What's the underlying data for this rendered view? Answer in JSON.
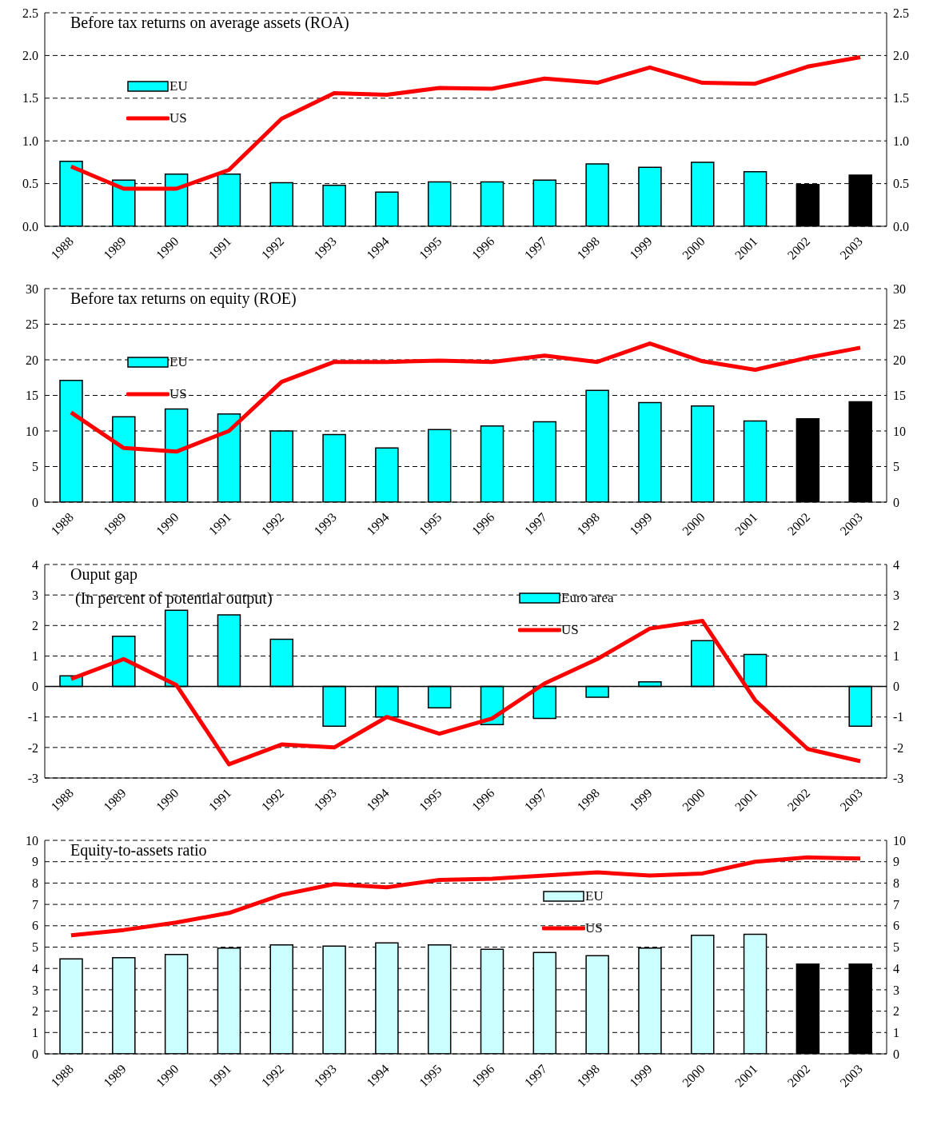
{
  "chart_data": [
    {
      "type": "bar",
      "title": "Before tax returns on average assets (ROA)",
      "categories": [
        "1988",
        "1989",
        "1990",
        "1991",
        "1992",
        "1993",
        "1994",
        "1995",
        "1996",
        "1997",
        "1998",
        "1999",
        "2000",
        "2001",
        "2002",
        "2003"
      ],
      "series": [
        {
          "name": "EU",
          "color": "#00ffff",
          "colors": [
            "#00ffff",
            "#00ffff",
            "#00ffff",
            "#00ffff",
            "#00ffff",
            "#00ffff",
            "#00ffff",
            "#00ffff",
            "#00ffff",
            "#00ffff",
            "#00ffff",
            "#00ffff",
            "#00ffff",
            "#00ffff",
            "#000000",
            "#000000"
          ],
          "values": [
            0.76,
            0.54,
            0.61,
            0.61,
            0.51,
            0.48,
            0.4,
            0.52,
            0.52,
            0.54,
            0.73,
            0.69,
            0.75,
            0.64,
            0.49,
            0.6
          ]
        },
        {
          "name": "US",
          "type": "line",
          "color": "#ff0000",
          "values": [
            0.7,
            0.44,
            0.44,
            0.66,
            1.26,
            1.56,
            1.54,
            1.62,
            1.61,
            1.73,
            1.68,
            1.86,
            1.68,
            1.67,
            1.87,
            1.98
          ]
        }
      ],
      "ylim": [
        0,
        2.5
      ],
      "yticks": [
        {
          "value": 0,
          "label": "0.0"
        },
        {
          "value": 0.5,
          "label": "0.5"
        },
        {
          "value": 1,
          "label": "1.0"
        },
        {
          "value": 1.5,
          "label": "1.5"
        },
        {
          "value": 2,
          "label": "2.0"
        },
        {
          "value": 2.5,
          "label": "2.5"
        }
      ],
      "y2lim": [
        0,
        2.5
      ],
      "y2ticks": [
        {
          "value": 0,
          "label": "0.0"
        },
        {
          "value": 0.5,
          "label": "0.5"
        },
        {
          "value": 1,
          "label": "1.0"
        },
        {
          "value": 1.5,
          "label": "1.5"
        },
        {
          "value": 2,
          "label": "2.0"
        },
        {
          "value": 2.5,
          "label": "2.5"
        }
      ],
      "grid": "y",
      "legend": "top left"
    },
    {
      "type": "bar",
      "title": "Before tax returns on equity (ROE)",
      "categories": [
        "1988",
        "1989",
        "1990",
        "1991",
        "1992",
        "1993",
        "1994",
        "1995",
        "1996",
        "1997",
        "1998",
        "1999",
        "2000",
        "2001",
        "2002",
        "2003"
      ],
      "series": [
        {
          "name": "EU",
          "color": "#00ffff",
          "colors": [
            "#00ffff",
            "#00ffff",
            "#00ffff",
            "#00ffff",
            "#00ffff",
            "#00ffff",
            "#00ffff",
            "#00ffff",
            "#00ffff",
            "#00ffff",
            "#00ffff",
            "#00ffff",
            "#00ffff",
            "#00ffff",
            "#000000",
            "#000000"
          ],
          "values": [
            17.1,
            12.0,
            13.1,
            12.4,
            10.0,
            9.5,
            7.6,
            10.2,
            10.7,
            11.3,
            15.7,
            14.0,
            13.5,
            11.4,
            11.7,
            14.1
          ]
        },
        {
          "name": "US",
          "type": "line",
          "color": "#ff0000",
          "values": [
            12.6,
            7.6,
            7.1,
            10.0,
            16.9,
            19.7,
            19.7,
            19.9,
            19.7,
            20.6,
            19.7,
            22.3,
            19.8,
            18.6,
            20.3,
            21.7
          ]
        }
      ],
      "ylim": [
        0,
        30
      ],
      "yticks": [
        0,
        5,
        10,
        15,
        20,
        25,
        30
      ],
      "y2lim": [
        0,
        30
      ],
      "y2ticks": [
        0,
        5,
        10,
        15,
        20,
        25,
        30
      ],
      "grid": "y",
      "legend": "top left"
    },
    {
      "type": "bar",
      "title": "Ouput gap",
      "subtitle": "(In percent of potential output)",
      "categories": [
        "1988",
        "1989",
        "1990",
        "1991",
        "1992",
        "1993",
        "1994",
        "1995",
        "1996",
        "1997",
        "1998",
        "1999",
        "2000",
        "2001",
        "2002",
        "2003"
      ],
      "series": [
        {
          "name": "Euro area",
          "color": "#00ffff",
          "values": [
            0.35,
            1.65,
            2.5,
            2.35,
            1.55,
            -1.3,
            -1.0,
            -0.7,
            -1.25,
            -1.05,
            -0.35,
            0.15,
            1.5,
            1.05,
            0.0,
            -1.3
          ]
        },
        {
          "name": "US",
          "type": "line",
          "color": "#ff0000",
          "values": [
            0.25,
            0.9,
            0.05,
            -2.55,
            -1.9,
            -2.0,
            -1.0,
            -1.55,
            -1.05,
            0.1,
            0.9,
            1.9,
            2.15,
            -0.45,
            -2.05,
            -2.45
          ]
        }
      ],
      "ylim": [
        -3,
        4
      ],
      "yticks": [
        -3,
        -2,
        -1,
        0,
        1,
        2,
        3,
        4
      ],
      "y2lim": [
        -3,
        4
      ],
      "y2ticks": [
        -3,
        -2,
        -1,
        0,
        1,
        2,
        3,
        4
      ],
      "grid": "y",
      "legend": "top",
      "ref_lines": [
        {
          "axis": "y",
          "value": 0,
          "color": "#000000",
          "line_style": "solid"
        }
      ]
    },
    {
      "type": "bar",
      "title": "Equity-to-assets ratio",
      "categories": [
        "1988",
        "1989",
        "1990",
        "1991",
        "1992",
        "1993",
        "1994",
        "1995",
        "1996",
        "1997",
        "1998",
        "1999",
        "2000",
        "2001",
        "2002",
        "2003"
      ],
      "series": [
        {
          "name": "EU",
          "color": "#ccffff",
          "colors": [
            "#ccffff",
            "#ccffff",
            "#ccffff",
            "#ccffff",
            "#ccffff",
            "#ccffff",
            "#ccffff",
            "#ccffff",
            "#ccffff",
            "#ccffff",
            "#ccffff",
            "#ccffff",
            "#ccffff",
            "#ccffff",
            "#000000",
            "#000000"
          ],
          "values": [
            4.45,
            4.5,
            4.65,
            4.95,
            5.1,
            5.05,
            5.2,
            5.1,
            4.9,
            4.75,
            4.6,
            4.95,
            5.55,
            5.6,
            4.2,
            4.2
          ]
        },
        {
          "name": "US",
          "type": "line",
          "color": "#ff0000",
          "values": [
            5.55,
            5.8,
            6.15,
            6.6,
            7.45,
            7.95,
            7.8,
            8.15,
            8.2,
            8.35,
            8.5,
            8.35,
            8.45,
            9.0,
            9.2,
            9.15
          ]
        }
      ],
      "ylim": [
        0,
        10
      ],
      "yticks": [
        0,
        1,
        2,
        3,
        4,
        5,
        6,
        7,
        8,
        9,
        10
      ],
      "y2lim": [
        0,
        10
      ],
      "y2ticks": [
        0,
        1,
        2,
        3,
        4,
        5,
        6,
        7,
        8,
        9,
        10
      ],
      "grid": "y",
      "legend": "center"
    }
  ]
}
